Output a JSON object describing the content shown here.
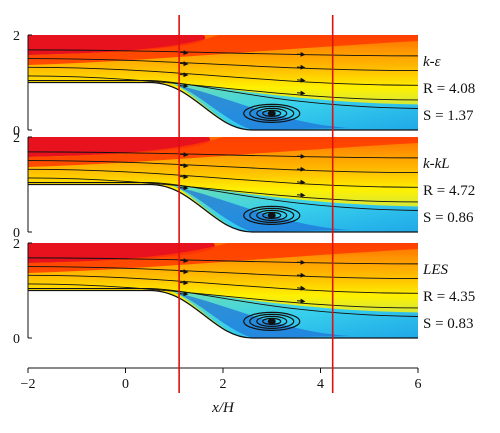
{
  "chart_data": {
    "type": "contour",
    "xlabel": "x/H",
    "xlim": [
      -2,
      6
    ],
    "x_ticks": [
      "−2",
      "0",
      "2",
      "4",
      "6"
    ],
    "ylim": [
      0,
      2
    ],
    "y_ticks": [
      "0",
      "2"
    ],
    "vertical_lines_x": [
      1.1,
      4.25
    ],
    "colormap": [
      "#1e6fd9",
      "#1fa8e8",
      "#38d0ec",
      "#6ee0b0",
      "#a8e25a",
      "#ddea2f",
      "#fff000",
      "#ffc300",
      "#ff9a00",
      "#ff6a00",
      "#ff3a00",
      "#e8121e"
    ],
    "panels": [
      {
        "model": "k-ε",
        "R_label": "R = 4.08",
        "S_label": "S = 1.37",
        "R": 4.08,
        "S": 1.37
      },
      {
        "model": "k-kL",
        "R_label": "R = 4.72",
        "S_label": "S = 0.86",
        "R": 4.72,
        "S": 0.86
      },
      {
        "model": "LES",
        "R_label": "R = 4.35",
        "S_label": "S = 0.83",
        "R": 4.35,
        "S": 0.83
      }
    ]
  }
}
